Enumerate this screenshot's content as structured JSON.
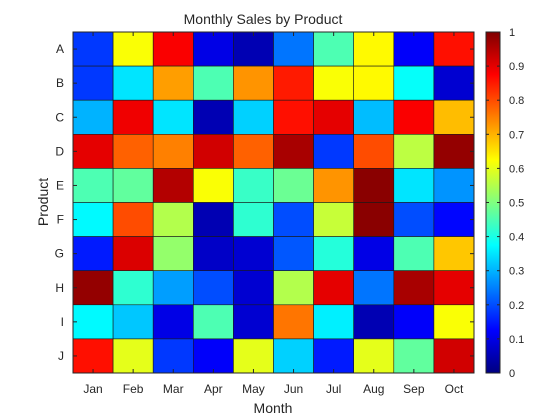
{
  "chart_data": {
    "type": "heatmap",
    "title": "Monthly Sales by Product",
    "xlabel": "Month",
    "ylabel": "Product",
    "x_categories": [
      "Jan",
      "Feb",
      "Mar",
      "Apr",
      "May",
      "Jun",
      "Jul",
      "Aug",
      "Sep",
      "Oct"
    ],
    "y_categories": [
      "A",
      "B",
      "C",
      "D",
      "E",
      "F",
      "G",
      "H",
      "I",
      "J"
    ],
    "values": [
      [
        0.18,
        0.62,
        0.88,
        0.1,
        0.05,
        0.24,
        0.45,
        0.63,
        0.12,
        0.86
      ],
      [
        0.18,
        0.35,
        0.72,
        0.45,
        0.73,
        0.85,
        0.62,
        0.63,
        0.38,
        0.08
      ],
      [
        0.3,
        0.89,
        0.35,
        0.05,
        0.33,
        0.86,
        0.9,
        0.31,
        0.88,
        0.69
      ],
      [
        0.9,
        0.78,
        0.75,
        0.92,
        0.78,
        0.96,
        0.18,
        0.8,
        0.56,
        0.98
      ],
      [
        0.45,
        0.47,
        0.95,
        0.62,
        0.43,
        0.48,
        0.73,
        0.99,
        0.35,
        0.27
      ],
      [
        0.37,
        0.8,
        0.55,
        0.05,
        0.42,
        0.2,
        0.57,
        0.99,
        0.2,
        0.13
      ],
      [
        0.15,
        0.91,
        0.52,
        0.07,
        0.08,
        0.21,
        0.41,
        0.1,
        0.45,
        0.68
      ],
      [
        0.98,
        0.42,
        0.28,
        0.2,
        0.08,
        0.55,
        0.9,
        0.24,
        0.96,
        0.9
      ],
      [
        0.37,
        0.32,
        0.1,
        0.45,
        0.08,
        0.76,
        0.36,
        0.05,
        0.12,
        0.62
      ],
      [
        0.86,
        0.6,
        0.18,
        0.12,
        0.6,
        0.33,
        0.15,
        0.6,
        0.47,
        0.92
      ]
    ],
    "colormap": "jet",
    "clim": [
      0,
      1
    ],
    "colorbar_ticks": [
      "0",
      "0.1",
      "0.2",
      "0.3",
      "0.4",
      "0.5",
      "0.6",
      "0.7",
      "0.8",
      "0.9",
      "1"
    ],
    "grid": false,
    "colorbar_position": "right"
  }
}
